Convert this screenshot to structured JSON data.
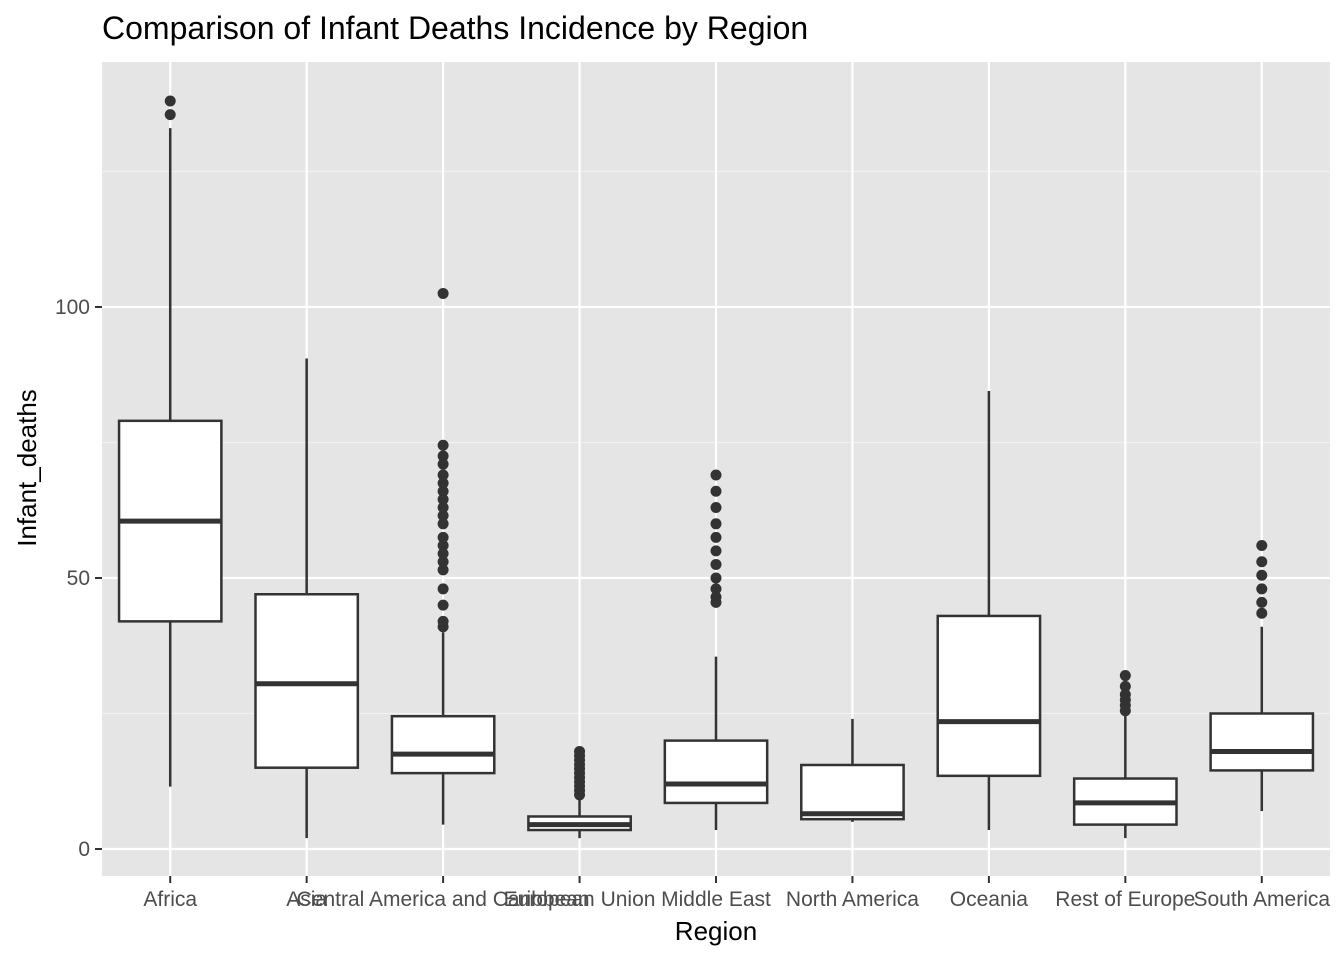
{
  "chart_data": {
    "type": "boxplot",
    "title": "Comparison of Infant Deaths Incidence by Region",
    "xlabel": "Region",
    "ylabel": "Infant_deaths",
    "ylim": [
      -5,
      145
    ],
    "yticks": [
      0,
      50,
      100
    ],
    "grid": true,
    "categories": [
      "Africa",
      "Asia",
      "Central America and Caribbean",
      "European Union",
      "Middle East",
      "North America",
      "Oceania",
      "Rest of Europe",
      "South America"
    ],
    "boxes": [
      {
        "category": "Africa",
        "whisker_low": 11.5,
        "q1": 42.0,
        "median": 60.5,
        "q3": 79.0,
        "whisker_high": 133.0,
        "outliers": [
          138.0,
          135.5
        ]
      },
      {
        "category": "Asia",
        "whisker_low": 2.0,
        "q1": 15.0,
        "median": 30.5,
        "q3": 47.0,
        "whisker_high": 90.5,
        "outliers": []
      },
      {
        "category": "Central America and Caribbean",
        "whisker_low": 4.5,
        "q1": 14.0,
        "median": 17.5,
        "q3": 24.5,
        "whisker_high": 40.0,
        "outliers": [
          102.5,
          74.5,
          72.5,
          71.0,
          69.0,
          67.5,
          66.0,
          64.5,
          63.0,
          61.5,
          60.0,
          57.5,
          56.0,
          54.5,
          53.0,
          51.5,
          48.0,
          45.0,
          42.0,
          41.0
        ]
      },
      {
        "category": "European Union",
        "whisker_low": 2.0,
        "q1": 3.5,
        "median": 4.5,
        "q3": 6.0,
        "whisker_high": 9.5,
        "outliers": [
          18.0,
          17.2,
          16.4,
          15.6,
          14.8,
          14.0,
          13.2,
          12.4,
          11.6,
          10.8,
          10.0
        ]
      },
      {
        "category": "Middle East",
        "whisker_low": 3.5,
        "q1": 8.5,
        "median": 12.0,
        "q3": 20.0,
        "whisker_high": 35.5,
        "outliers": [
          69.0,
          66.0,
          63.0,
          60.0,
          57.5,
          55.0,
          52.5,
          50.0,
          48.0,
          46.5,
          45.5
        ]
      },
      {
        "category": "North America",
        "whisker_low": 5.0,
        "q1": 5.5,
        "median": 6.5,
        "q3": 15.5,
        "whisker_high": 24.0,
        "outliers": []
      },
      {
        "category": "Oceania",
        "whisker_low": 3.5,
        "q1": 13.5,
        "median": 23.5,
        "q3": 43.0,
        "whisker_high": 84.5,
        "outliers": []
      },
      {
        "category": "Rest of Europe",
        "whisker_low": 2.0,
        "q1": 4.5,
        "median": 8.5,
        "q3": 13.0,
        "whisker_high": 25.0,
        "outliers": [
          32.0,
          30.0,
          28.5,
          27.5,
          26.5,
          25.5
        ]
      },
      {
        "category": "South America",
        "whisker_low": 7.0,
        "q1": 14.5,
        "median": 18.0,
        "q3": 25.0,
        "whisker_high": 41.0,
        "outliers": [
          56.0,
          53.0,
          50.5,
          48.0,
          45.5,
          43.5
        ]
      }
    ]
  }
}
